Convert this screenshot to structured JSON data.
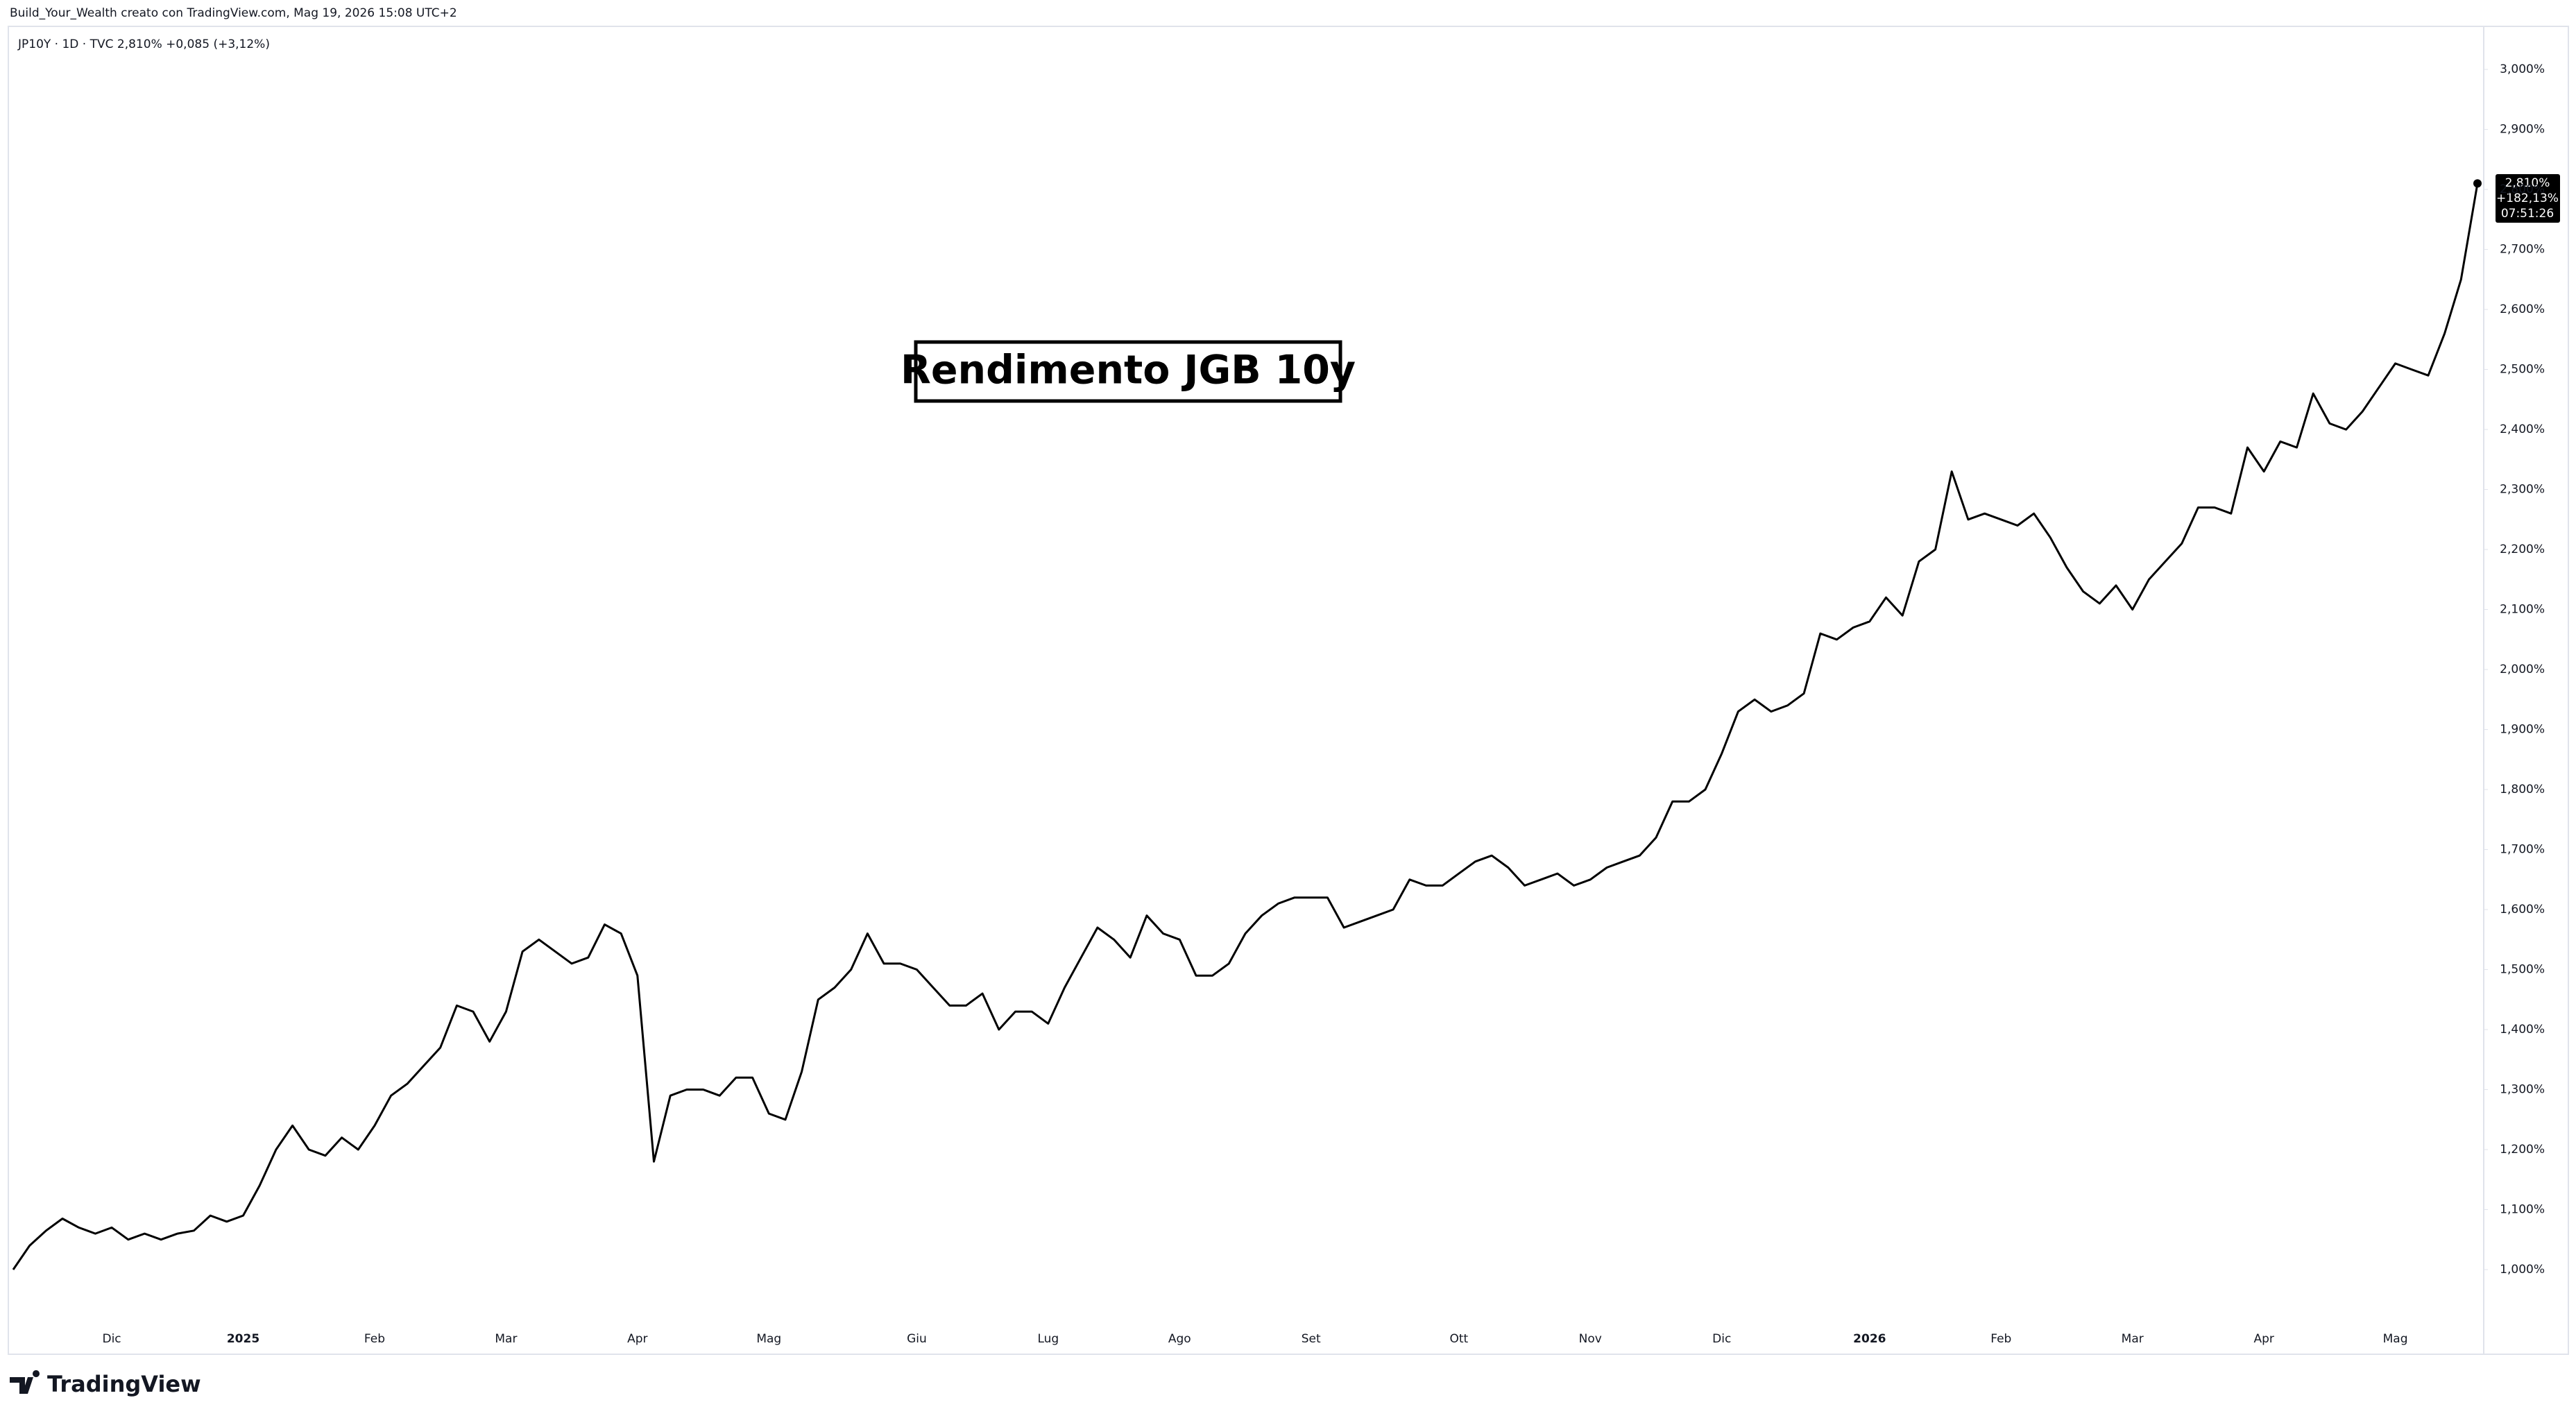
{
  "header": {
    "attribution": "Build_Your_Wealth creato con TradingView.com, Mag 19, 2026 15:08 UTC+2",
    "brand": "TradingView"
  },
  "chart_data": {
    "type": "line",
    "legend_text": "JP10Y · 1D · TVC  2,810%  +0,085 (+3,12%)",
    "title": "Rendimento JGB 10y",
    "price_label": [
      "2,810%",
      "+182,13%",
      "07:51:26"
    ],
    "color": "#000000",
    "categories": [
      null,
      null,
      null,
      null,
      null,
      null,
      "Dic",
      null,
      null,
      null,
      null,
      null,
      null,
      null,
      "2025",
      null,
      null,
      null,
      null,
      null,
      null,
      null,
      "Feb",
      null,
      null,
      null,
      null,
      null,
      null,
      null,
      "Mar",
      null,
      null,
      null,
      null,
      null,
      null,
      null,
      "Apr",
      null,
      null,
      null,
      null,
      null,
      null,
      null,
      "Mag",
      null,
      null,
      null,
      null,
      null,
      null,
      null,
      null,
      "Giu",
      null,
      null,
      null,
      null,
      null,
      null,
      null,
      "Lug",
      null,
      null,
      null,
      null,
      null,
      null,
      null,
      "Ago",
      null,
      null,
      null,
      null,
      null,
      null,
      null,
      "Set",
      null,
      null,
      null,
      null,
      null,
      null,
      null,
      null,
      "Ott",
      null,
      null,
      null,
      null,
      null,
      null,
      null,
      "Nov",
      null,
      null,
      null,
      null,
      null,
      null,
      null,
      "Dic",
      null,
      null,
      null,
      null,
      null,
      null,
      null,
      null,
      "2026",
      null,
      null,
      null,
      null,
      null,
      null,
      null,
      "Feb",
      null,
      null,
      null,
      null,
      null,
      null,
      null,
      "Mar",
      null,
      null,
      null,
      null,
      null,
      null,
      null,
      "Apr",
      null,
      null,
      null,
      null,
      null,
      null,
      null,
      "Mag",
      null,
      null,
      null,
      null,
      null
    ],
    "values": [
      1.0,
      1.04,
      1.065,
      1.085,
      1.07,
      1.06,
      1.07,
      1.05,
      1.06,
      1.05,
      1.06,
      1.065,
      1.09,
      1.08,
      1.09,
      1.14,
      1.2,
      1.24,
      1.2,
      1.19,
      1.22,
      1.2,
      1.24,
      1.29,
      1.31,
      1.34,
      1.37,
      1.44,
      1.43,
      1.38,
      1.43,
      1.53,
      1.55,
      1.53,
      1.51,
      1.52,
      1.575,
      1.56,
      1.49,
      1.18,
      1.29,
      1.3,
      1.3,
      1.29,
      1.32,
      1.32,
      1.26,
      1.25,
      1.33,
      1.45,
      1.47,
      1.5,
      1.56,
      1.51,
      1.51,
      1.5,
      1.47,
      1.44,
      1.44,
      1.46,
      1.4,
      1.43,
      1.43,
      1.41,
      1.47,
      1.52,
      1.57,
      1.55,
      1.52,
      1.59,
      1.56,
      1.55,
      1.49,
      1.49,
      1.51,
      1.56,
      1.59,
      1.61,
      1.62,
      1.62,
      1.62,
      1.57,
      1.58,
      1.59,
      1.6,
      1.65,
      1.64,
      1.64,
      1.66,
      1.68,
      1.69,
      1.67,
      1.64,
      1.65,
      1.66,
      1.64,
      1.65,
      1.67,
      1.68,
      1.69,
      1.72,
      1.78,
      1.78,
      1.8,
      1.86,
      1.93,
      1.95,
      1.93,
      1.94,
      1.96,
      2.06,
      2.05,
      2.07,
      2.08,
      2.12,
      2.09,
      2.18,
      2.2,
      2.33,
      2.25,
      2.26,
      2.25,
      2.24,
      2.26,
      2.22,
      2.17,
      2.13,
      2.11,
      2.14,
      2.1,
      2.15,
      2.18,
      2.21,
      2.27,
      2.27,
      2.26,
      2.37,
      2.33,
      2.38,
      2.37,
      2.46,
      2.41,
      2.4,
      2.43,
      2.47,
      2.51,
      2.5,
      2.49,
      2.56,
      2.65,
      2.81
    ],
    "ylim": [
      0.926,
      3.066
    ],
    "yticks": [
      {
        "value": 1.0,
        "label": "1,000%"
      },
      {
        "value": 1.1,
        "label": "1,100%"
      },
      {
        "value": 1.2,
        "label": "1,200%"
      },
      {
        "value": 1.3,
        "label": "1,300%"
      },
      {
        "value": 1.4,
        "label": "1,400%"
      },
      {
        "value": 1.5,
        "label": "1,500%"
      },
      {
        "value": 1.6,
        "label": "1,600%"
      },
      {
        "value": 1.7,
        "label": "1,700%"
      },
      {
        "value": 1.8,
        "label": "1,800%"
      },
      {
        "value": 1.9,
        "label": "1,900%"
      },
      {
        "value": 2.0,
        "label": "2,000%"
      },
      {
        "value": 2.1,
        "label": "2,100%"
      },
      {
        "value": 2.2,
        "label": "2,200%"
      },
      {
        "value": 2.3,
        "label": "2,300%"
      },
      {
        "value": 2.4,
        "label": "2,400%"
      },
      {
        "value": 2.5,
        "label": "2,500%"
      },
      {
        "value": 2.6,
        "label": "2,600%"
      },
      {
        "value": 2.7,
        "label": "2,700%"
      },
      {
        "value": 2.8,
        "label": "2,800%"
      },
      {
        "value": 2.9,
        "label": "2,900%"
      },
      {
        "value": 3.0,
        "label": "3,000%"
      }
    ],
    "grid": false
  }
}
